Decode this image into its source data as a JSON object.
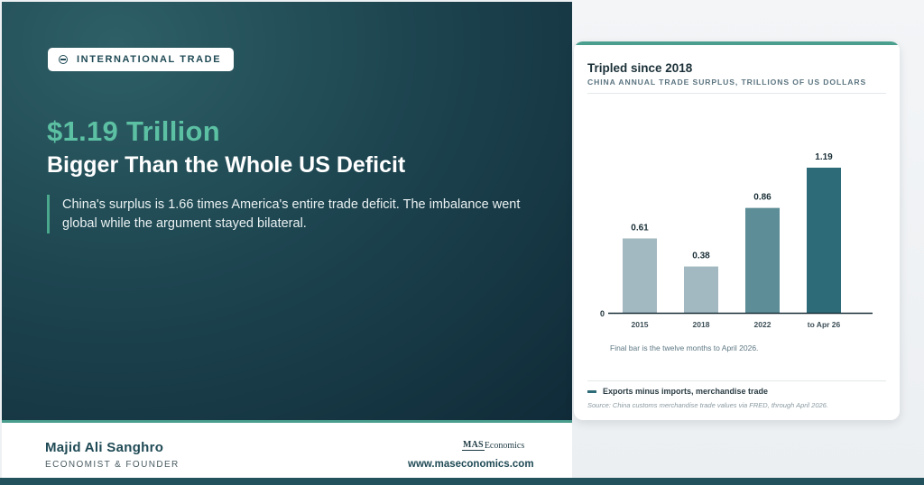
{
  "badge": {
    "label": "INTERNATIONAL TRADE",
    "icon": "globe-icon"
  },
  "headline": {
    "big": "$1.19 Trillion",
    "sub": "Bigger Than the Whole US Deficit"
  },
  "quote": "China's surplus is 1.66 times America's entire trade deficit. The imbalance went global while the argument stayed bilateral.",
  "author": {
    "name": "Majid Ali Sanghro",
    "role": "ECONOMIST & FOUNDER"
  },
  "brand": {
    "logo_box": "MAS",
    "logo_text": "Economics",
    "website": "www.maseconomics.com"
  },
  "colors": {
    "accent": "#4a9e8e",
    "headline_green": "#5cc0a3",
    "panel_dark": "#1d4550",
    "bar_light": "#a2b9c1",
    "bar_mid": "#5d8d97",
    "bar_dark": "#2e6b78"
  },
  "chart_data": {
    "type": "bar",
    "title": "Tripled since 2018",
    "subtitle": "CHINA ANNUAL TRADE SURPLUS, TRILLIONS OF US DOLLARS",
    "categories": [
      "2015",
      "2018",
      "2022",
      "to Apr 26"
    ],
    "values": [
      0.61,
      0.38,
      0.86,
      1.19
    ],
    "data_labels": [
      "0.61",
      "0.38",
      "0.86",
      "1.19"
    ],
    "bar_colors": [
      "#a2b9c1",
      "#a2b9c1",
      "#5d8d97",
      "#2e6b78"
    ],
    "y_ticks": [
      "0"
    ],
    "ylim": [
      0,
      1.19
    ],
    "grid": false,
    "note": "Final bar is the twelve months to April 2026.",
    "legend": {
      "label": "Exports minus imports, merchandise trade",
      "placement": "bottom-left"
    },
    "source": "Source: China customs merchandise trade values via FRED, through April 2026."
  }
}
